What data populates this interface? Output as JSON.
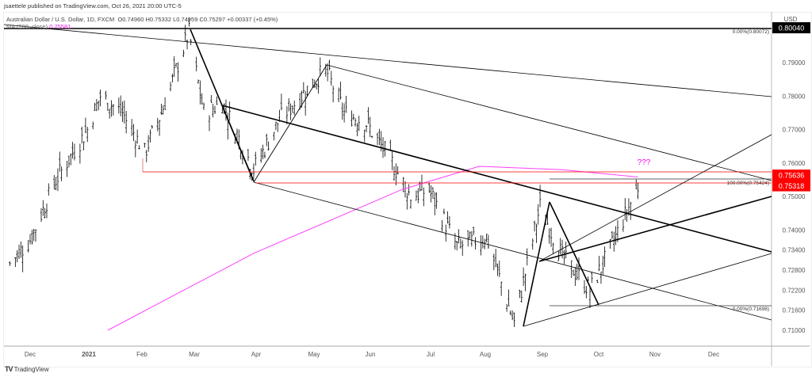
{
  "header": {
    "published": "jsaettele published on TradingView.com, Oct 26, 2021 20:00 UTC-5",
    "symbol": "Australian Dollar / U.S. Dollar, 1D, FXCM",
    "ohlc": "O0.74960 H0.75332 L0.74959 C0.75297 +0.00337 (+0.45%)",
    "ma_label": "MA (200, close)",
    "ma_value": "0.75581"
  },
  "axis": {
    "currency": "USD",
    "ticks": [
      "0.79000",
      "0.78000",
      "0.77000",
      "0.76000",
      "0.75000",
      "0.74000",
      "0.73400",
      "0.72800",
      "0.72200",
      "0.71600",
      "0.71000"
    ],
    "badges": [
      {
        "label": "0.80040",
        "color": "#000000"
      },
      {
        "label": "0.75636",
        "color": "#ff0000"
      },
      {
        "label": "0.75318",
        "color": "#ff0000"
      }
    ],
    "months": [
      "Dec",
      "2021",
      "Feb",
      "Mar",
      "Apr",
      "May",
      "Jun",
      "Jul",
      "Aug",
      "Sep",
      "Oct",
      "Nov",
      "Dec"
    ]
  },
  "annotations": {
    "question": "???",
    "fib_top": "0.00%(0.80072)",
    "fib_100": "100.00%(0.75424)",
    "fib_0": "0.00%(0.71698)"
  },
  "brand": "TradingView",
  "chart_data": {
    "type": "ohlc",
    "symbol": "AUDUSD",
    "timeframe": "1D",
    "waypoints": [
      [
        "2020-11-20",
        0.73
      ],
      [
        "2020-12-01",
        0.737
      ],
      [
        "2020-12-15",
        0.755
      ],
      [
        "2021-01-01",
        0.77
      ],
      [
        "2021-01-08",
        0.78
      ],
      [
        "2021-01-20",
        0.775
      ],
      [
        "2021-02-01",
        0.763
      ],
      [
        "2021-02-10",
        0.775
      ],
      [
        "2021-02-25",
        0.799
      ],
      [
        "2021-03-05",
        0.775
      ],
      [
        "2021-03-15",
        0.778
      ],
      [
        "2021-04-01",
        0.758
      ],
      [
        "2021-04-15",
        0.773
      ],
      [
        "2021-05-10",
        0.788
      ],
      [
        "2021-05-20",
        0.775
      ],
      [
        "2021-06-01",
        0.772
      ],
      [
        "2021-06-15",
        0.76
      ],
      [
        "2021-06-25",
        0.75
      ],
      [
        "2021-07-05",
        0.752
      ],
      [
        "2021-07-20",
        0.735
      ],
      [
        "2021-08-05",
        0.738
      ],
      [
        "2021-08-20",
        0.712
      ],
      [
        "2021-09-03",
        0.747
      ],
      [
        "2021-09-15",
        0.732
      ],
      [
        "2021-09-30",
        0.722
      ],
      [
        "2021-10-10",
        0.733
      ],
      [
        "2021-10-26",
        0.753
      ]
    ],
    "ma200": [
      [
        "2021-01-12",
        0.71
      ],
      [
        "2021-04-01",
        0.733
      ],
      [
        "2021-06-20",
        0.752
      ],
      [
        "2021-08-01",
        0.759
      ],
      [
        "2021-09-15",
        0.758
      ],
      [
        "2021-10-26",
        0.7558
      ]
    ],
    "ylim": [
      0.7065,
      0.8045
    ],
    "colors": {
      "ma": "#ff40ff",
      "levels": "#ff0000",
      "bars": "#000000"
    }
  }
}
